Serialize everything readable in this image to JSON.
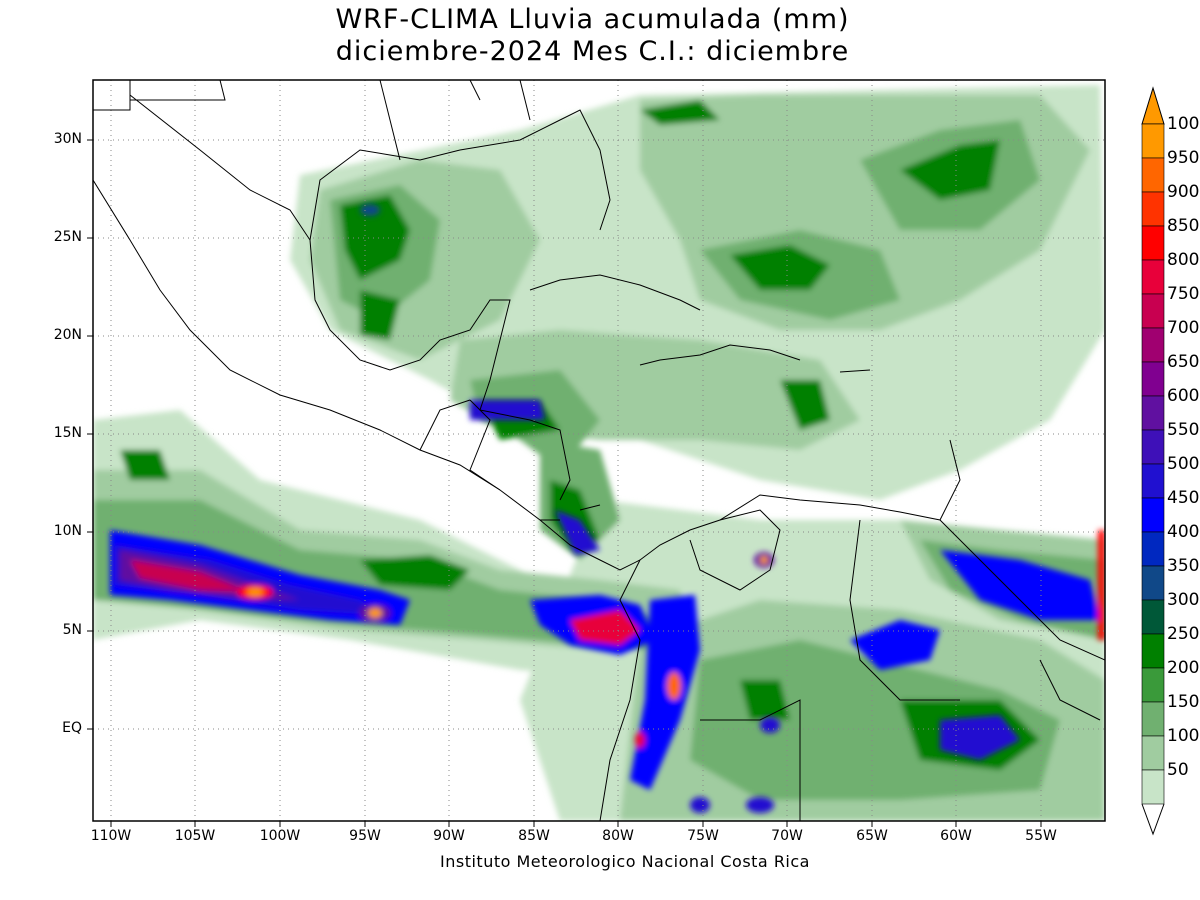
{
  "title_line1": "WRF-CLIMA Lluvia acumulada (mm)",
  "title_line2": "diciembre-2024 Mes C.I.: diciembre",
  "credit": "Instituto Meteorologico Nacional Costa Rica",
  "lat_labels": [
    "30N",
    "25N",
    "20N",
    "15N",
    "10N",
    "5N",
    "EQ"
  ],
  "lon_labels": [
    "110W",
    "105W",
    "100W",
    "95W",
    "90W",
    "85W",
    "80W",
    "75W",
    "70W",
    "65W",
    "60W",
    "55W"
  ],
  "colorbar": {
    "labels": [
      "1000",
      "950",
      "900",
      "850",
      "800",
      "750",
      "700",
      "650",
      "600",
      "550",
      "500",
      "450",
      "400",
      "350",
      "300",
      "250",
      "200",
      "150",
      "100",
      "50"
    ],
    "colors": [
      "#ff9900",
      "#ff6600",
      "#ff3300",
      "#ff0000",
      "#e8003a",
      "#c80050",
      "#a00070",
      "#800090",
      "#6010a0",
      "#3e10b8",
      "#2010d0",
      "#0000ff",
      "#0028c0",
      "#104888",
      "#005838",
      "#008000",
      "#3a9a3a",
      "#70b070",
      "#a0cca0",
      "#c8e4c8"
    ],
    "unit": "mm"
  },
  "legend_description": "Shaded precipitation accumulation, green (50) to purple/red/orange (1000)"
}
